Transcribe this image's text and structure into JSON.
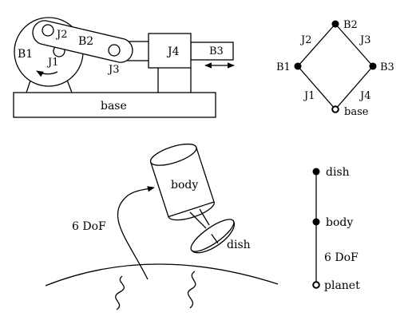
{
  "mechanism": {
    "labels": {
      "b1": "B1",
      "j1": "J1",
      "j2": "J2",
      "b2": "B2",
      "j3": "J3",
      "j4": "J4",
      "b3": "B3",
      "base": "base"
    }
  },
  "loop_graph": {
    "nodes": {
      "b2": "B2",
      "b1": "B1",
      "b3": "B3",
      "base": "base"
    },
    "edges": {
      "j1": "J1",
      "j2": "J2",
      "j3": "J3",
      "j4": "J4"
    }
  },
  "satellite": {
    "labels": {
      "body": "body",
      "dish": "dish",
      "dof": "6 DoF"
    }
  },
  "chain_graph": {
    "nodes": {
      "dish": "dish",
      "body": "body",
      "planet": "planet"
    },
    "edges": {
      "dof": "6 DoF"
    }
  }
}
